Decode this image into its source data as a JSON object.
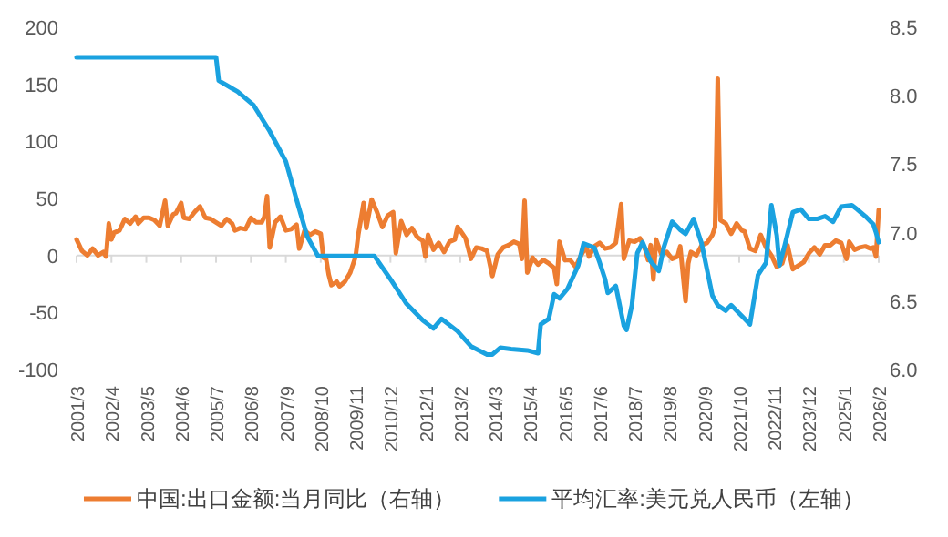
{
  "chart_data": {
    "type": "line",
    "xlim": [
      "2001-03",
      "2026-02"
    ],
    "xticks": [
      {
        "value": "2001-03",
        "label": "2001/3"
      },
      {
        "value": "2002-04",
        "label": "2002/4"
      },
      {
        "value": "2003-05",
        "label": "2003/5"
      },
      {
        "value": "2004-06",
        "label": "2004/6"
      },
      {
        "value": "2005-07",
        "label": "2005/7"
      },
      {
        "value": "2006-08",
        "label": "2006/8"
      },
      {
        "value": "2007-09",
        "label": "2007/9"
      },
      {
        "value": "2008-10",
        "label": "2008/10"
      },
      {
        "value": "2009-11",
        "label": "2009/11"
      },
      {
        "value": "2010-12",
        "label": "2010/12"
      },
      {
        "value": "2012-01",
        "label": "2012/1"
      },
      {
        "value": "2013-02",
        "label": "2013/2"
      },
      {
        "value": "2014-03",
        "label": "2014/3"
      },
      {
        "value": "2015-04",
        "label": "2015/4"
      },
      {
        "value": "2016-05",
        "label": "2016/5"
      },
      {
        "value": "2017-06",
        "label": "2017/6"
      },
      {
        "value": "2018-07",
        "label": "2018/7"
      },
      {
        "value": "2019-08",
        "label": "2019/8"
      },
      {
        "value": "2020-09",
        "label": "2020/9"
      },
      {
        "value": "2021-10",
        "label": "2021/10"
      },
      {
        "value": "2022-11",
        "label": "2022/11"
      },
      {
        "value": "2023-12",
        "label": "2023/12"
      },
      {
        "value": "2025-01",
        "label": "2025/1"
      },
      {
        "value": "2026-02",
        "label": "2026/2"
      }
    ],
    "ylim": [
      -100,
      200
    ],
    "yticks": [
      -100,
      -50,
      0,
      50,
      100,
      150,
      200
    ],
    "y2lim": [
      6.0,
      8.5
    ],
    "y2ticks": [
      {
        "value": 6,
        "label": "6.0"
      },
      {
        "value": 6.5,
        "label": "6.5"
      },
      {
        "value": 7,
        "label": "7.0"
      },
      {
        "value": 7.5,
        "label": "7.5"
      },
      {
        "value": 8,
        "label": "8.0"
      },
      {
        "value": 8.5,
        "label": "8.5"
      }
    ],
    "legend": "bottom",
    "marker": "none",
    "line_style": "solid",
    "series": [
      {
        "name": "中国:出口金额:当月同比（右轴）",
        "color": "#ed7d31",
        "axis": "y",
        "x": [
          "2001-03",
          "2001-05",
          "2001-07",
          "2001-09",
          "2001-11",
          "2002-01",
          "2002-02",
          "2002-03",
          "2002-04",
          "2002-05",
          "2002-07",
          "2002-09",
          "2002-11",
          "2003-01",
          "2003-02",
          "2003-04",
          "2003-06",
          "2003-08",
          "2003-10",
          "2003-12",
          "2004-01",
          "2004-03",
          "2004-04",
          "2004-06",
          "2004-07",
          "2004-09",
          "2004-11",
          "2005-01",
          "2005-03",
          "2005-05",
          "2005-07",
          "2005-09",
          "2005-11",
          "2006-01",
          "2006-02",
          "2006-04",
          "2006-06",
          "2006-08",
          "2006-10",
          "2006-12",
          "2007-01",
          "2007-02",
          "2007-03",
          "2007-05",
          "2007-07",
          "2007-09",
          "2007-11",
          "2008-01",
          "2008-02",
          "2008-04",
          "2008-06",
          "2008-08",
          "2008-10",
          "2008-11",
          "2008-12",
          "2009-01",
          "2009-02",
          "2009-04",
          "2009-05",
          "2009-07",
          "2009-09",
          "2009-11",
          "2009-12",
          "2010-02",
          "2010-03",
          "2010-05",
          "2010-07",
          "2010-09",
          "2010-11",
          "2011-01",
          "2011-02",
          "2011-04",
          "2011-06",
          "2011-08",
          "2011-10",
          "2011-12",
          "2012-01",
          "2012-02",
          "2012-04",
          "2012-06",
          "2012-08",
          "2012-10",
          "2012-12",
          "2013-01",
          "2013-02",
          "2013-04",
          "2013-06",
          "2013-08",
          "2013-10",
          "2013-12",
          "2014-02",
          "2014-04",
          "2014-06",
          "2014-08",
          "2014-10",
          "2014-12",
          "2015-01",
          "2015-02",
          "2015-03",
          "2015-05",
          "2015-07",
          "2015-09",
          "2015-11",
          "2016-01",
          "2016-02",
          "2016-03",
          "2016-05",
          "2016-07",
          "2016-09",
          "2016-11",
          "2017-01",
          "2017-02",
          "2017-04",
          "2017-06",
          "2017-08",
          "2017-10",
          "2017-12",
          "2018-02",
          "2018-03",
          "2018-05",
          "2018-07",
          "2018-09",
          "2018-11",
          "2018-12",
          "2019-01",
          "2019-02",
          "2019-03",
          "2019-05",
          "2019-07",
          "2019-09",
          "2019-11",
          "2019-12",
          "2020-02",
          "2020-03",
          "2020-04",
          "2020-06",
          "2020-08",
          "2020-10",
          "2020-12",
          "2021-01",
          "2021-02",
          "2021-03",
          "2021-05",
          "2021-07",
          "2021-09",
          "2021-11",
          "2021-12",
          "2022-02",
          "2022-04",
          "2022-06",
          "2022-08",
          "2022-10",
          "2022-12",
          "2023-02",
          "2023-04",
          "2023-06",
          "2023-08",
          "2023-10",
          "2023-12",
          "2024-02",
          "2024-04",
          "2024-06",
          "2024-08",
          "2024-10",
          "2024-12",
          "2025-02",
          "2025-03",
          "2025-05",
          "2025-07",
          "2025-09",
          "2025-11",
          "2025-12",
          "2026-01",
          "2026-02"
        ],
        "values": [
          14,
          4,
          0,
          6,
          0,
          3,
          -1,
          28,
          14,
          20,
          22,
          32,
          28,
          34,
          28,
          33,
          33,
          31,
          26,
          48,
          26,
          36,
          37,
          46,
          33,
          32,
          38,
          43,
          33,
          32,
          29,
          26,
          32,
          28,
          22,
          24,
          23,
          33,
          29,
          29,
          34,
          52,
          7,
          29,
          34,
          22,
          23,
          27,
          6,
          22,
          18,
          21,
          19,
          -2,
          -3,
          -17,
          -26,
          -23,
          -27,
          -23,
          -15,
          -1,
          18,
          46,
          24,
          49,
          38,
          25,
          35,
          38,
          2,
          30,
          18,
          24,
          16,
          13,
          -1,
          18,
          5,
          11,
          3,
          12,
          14,
          25,
          22,
          15,
          -3,
          7,
          6,
          4,
          -18,
          1,
          7,
          9,
          12,
          10,
          -3,
          48,
          -15,
          -2,
          -8,
          -4,
          -7,
          -11,
          -25,
          12,
          -4,
          -4,
          -10,
          0,
          8,
          -1,
          8,
          11,
          6,
          7,
          11,
          45,
          -3,
          13,
          12,
          15,
          5,
          -4,
          9,
          -21,
          14,
          1,
          3,
          -3,
          -1,
          8,
          -40,
          -7,
          3,
          0,
          9,
          11,
          18,
          25,
          155,
          31,
          28,
          19,
          28,
          22,
          21,
          6,
          4,
          18,
          7,
          0,
          -10,
          -7,
          9,
          -12,
          -9,
          -6,
          2,
          7,
          1,
          9,
          9,
          13,
          11,
          -3,
          12,
          5,
          7,
          8,
          6,
          7,
          -1,
          40
        ]
      },
      {
        "name": "平均汇率:美元兑人民币（左轴）",
        "color": "#1aa2e0",
        "axis": "y2",
        "x": [
          "2001-03",
          "2005-07",
          "2005-08",
          "2006-03",
          "2006-09",
          "2007-03",
          "2007-09",
          "2008-01",
          "2008-05",
          "2008-09",
          "2010-06",
          "2010-12",
          "2011-06",
          "2011-12",
          "2012-04",
          "2012-07",
          "2013-01",
          "2013-06",
          "2013-12",
          "2014-02",
          "2014-05",
          "2014-09",
          "2015-03",
          "2015-07",
          "2015-08",
          "2015-11",
          "2016-01",
          "2016-03",
          "2016-06",
          "2016-10",
          "2016-12",
          "2017-04",
          "2017-06",
          "2017-08",
          "2017-09",
          "2017-12",
          "2018-03",
          "2018-04",
          "2018-06",
          "2018-08",
          "2018-10",
          "2019-01",
          "2019-04",
          "2019-06",
          "2019-09",
          "2019-12",
          "2020-02",
          "2020-05",
          "2020-08",
          "2020-12",
          "2021-02",
          "2021-05",
          "2021-07",
          "2021-12",
          "2022-02",
          "2022-05",
          "2022-08",
          "2022-10",
          "2022-12",
          "2023-01",
          "2023-03",
          "2023-06",
          "2023-09",
          "2023-12",
          "2024-03",
          "2024-06",
          "2024-09",
          "2024-12",
          "2025-04",
          "2025-06",
          "2025-09",
          "2025-12",
          "2026-01",
          "2026-02"
        ],
        "values": [
          8.28,
          8.28,
          8.11,
          8.03,
          7.93,
          7.74,
          7.52,
          7.24,
          6.97,
          6.83,
          6.83,
          6.66,
          6.48,
          6.36,
          6.3,
          6.37,
          6.28,
          6.17,
          6.11,
          6.11,
          6.16,
          6.15,
          6.14,
          6.12,
          6.33,
          6.37,
          6.55,
          6.52,
          6.59,
          6.76,
          6.92,
          6.89,
          6.78,
          6.66,
          6.56,
          6.61,
          6.32,
          6.29,
          6.47,
          6.85,
          6.93,
          6.79,
          6.72,
          6.9,
          7.08,
          7.02,
          6.99,
          7.1,
          6.92,
          6.54,
          6.47,
          6.43,
          6.47,
          6.37,
          6.33,
          6.69,
          6.78,
          7.2,
          6.98,
          6.76,
          6.91,
          7.15,
          7.17,
          7.1,
          7.1,
          7.12,
          7.08,
          7.19,
          7.2,
          7.17,
          7.12,
          7.06,
          7.0,
          6.93
        ]
      }
    ]
  }
}
